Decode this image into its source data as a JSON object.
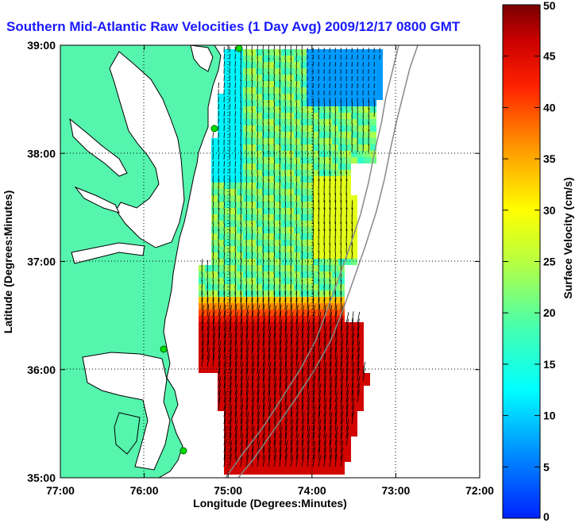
{
  "title": "Southern Mid-Atlantic Raw Velocities (1 Day Avg) 2009/12/17 0800 GMT",
  "x_axis": {
    "label": "Longitude (Degrees:Minutes)",
    "ticks": [
      "77:00",
      "76:00",
      "75:00",
      "74:00",
      "73:00",
      "72:00"
    ]
  },
  "y_axis": {
    "label": "Latitude (Degrees:Minutes)",
    "ticks": [
      "39:00",
      "38:00",
      "37:00",
      "36:00",
      "35:00"
    ]
  },
  "colorbar": {
    "label": "Surface Velocity (cm/s)",
    "ticks": [
      "50",
      "45",
      "40",
      "35",
      "30",
      "25",
      "20",
      "15",
      "10",
      "5",
      "0"
    ],
    "min": 0,
    "max": 50
  },
  "colors": {
    "title": "#1a1aff",
    "land": "#55f5ae",
    "water": "#ffffff",
    "coastline": "#000000",
    "grid": "#000000",
    "arrow": "#000000",
    "station": "#00dd00"
  },
  "map": {
    "lon_range": [
      -77,
      -72
    ],
    "lat_range": [
      35,
      39
    ],
    "grid": true,
    "stations_visible": 4
  }
}
